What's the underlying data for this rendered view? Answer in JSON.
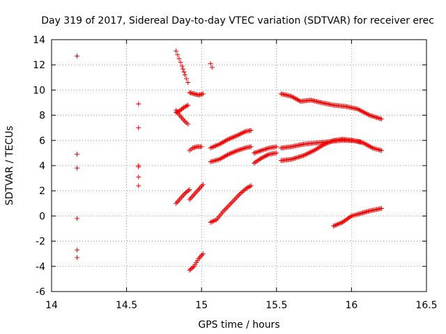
{
  "chart_data": {
    "type": "scatter",
    "title": "Day 319 of 2017, Sidereal Day-to-day VTEC variation (SDTVAR) for receiver erec",
    "xlabel": "GPS time / hours",
    "ylabel": "SDTVAR / TECUs",
    "xlim": [
      14,
      16.5
    ],
    "ylim": [
      -6,
      14
    ],
    "xticks": [
      "14",
      "14.5",
      "15",
      "15.5",
      "16",
      "16.5"
    ],
    "xtick_values": [
      14,
      14.5,
      15,
      15.5,
      16,
      16.5
    ],
    "yticks": [
      "-6",
      "-4",
      "-2",
      "0",
      "2",
      "4",
      "6",
      "8",
      "10",
      "12",
      "14"
    ],
    "ytick_values": [
      -6,
      -4,
      -2,
      0,
      2,
      4,
      6,
      8,
      10,
      12,
      14
    ],
    "grid": true,
    "marker": "plus",
    "marker_color": "#ee0000",
    "series": [
      {
        "segments": [
          {
            "x": [
              14.17,
              14.17,
              14.17,
              14.17,
              14.17,
              14.17
            ],
            "y": [
              12.7,
              4.9,
              3.8,
              -0.2,
              -2.7,
              -3.3
            ]
          },
          {
            "x": [
              14.58,
              14.58,
              14.58,
              14.58,
              14.58,
              14.58
            ],
            "y": [
              8.9,
              7.0,
              4.0,
              3.9,
              3.1,
              2.4
            ]
          },
          {
            "x": [
              14.83,
              14.85,
              14.87,
              14.89,
              14.91
            ],
            "y": [
              13.1,
              12.5,
              11.9,
              11.2,
              10.6
            ]
          },
          {
            "x": [
              14.83,
              14.86,
              14.89,
              14.91
            ],
            "y": [
              8.4,
              7.9,
              7.5,
              7.3
            ]
          },
          {
            "x": [
              14.83,
              14.86,
              14.88,
              14.91
            ],
            "y": [
              8.2,
              8.4,
              8.6,
              8.8
            ]
          },
          {
            "x": [
              14.92,
              14.95,
              14.98,
              15.01
            ],
            "y": [
              9.8,
              9.7,
              9.6,
              9.7
            ]
          },
          {
            "x": [
              14.83,
              14.86,
              14.89,
              14.92
            ],
            "y": [
              1.0,
              1.4,
              1.8,
              2.1
            ]
          },
          {
            "x": [
              14.92,
              14.94,
              14.97,
              15.0
            ],
            "y": [
              5.2,
              5.4,
              5.5,
              5.5
            ]
          },
          {
            "x": [
              14.92,
              14.95,
              14.98,
              15.01
            ],
            "y": [
              1.3,
              1.7,
              2.1,
              2.5
            ]
          },
          {
            "x": [
              14.92,
              14.95,
              14.98,
              15.01
            ],
            "y": [
              -4.3,
              -4.0,
              -3.4,
              -3.0
            ]
          },
          {
            "x": [
              15.06,
              15.07
            ],
            "y": [
              12.1,
              11.8
            ]
          },
          {
            "x": [
              15.06,
              15.12,
              15.18,
              15.24,
              15.29,
              15.33
            ],
            "y": [
              5.4,
              5.7,
              6.1,
              6.4,
              6.7,
              6.8
            ]
          },
          {
            "x": [
              15.06,
              15.12,
              15.18,
              15.24,
              15.29,
              15.33
            ],
            "y": [
              4.3,
              4.5,
              4.9,
              5.2,
              5.4,
              5.5
            ]
          },
          {
            "x": [
              15.06,
              15.1,
              15.14,
              15.18,
              15.22,
              15.26,
              15.3,
              15.33
            ],
            "y": [
              -0.5,
              -0.3,
              0.3,
              0.8,
              1.3,
              1.8,
              2.2,
              2.4
            ]
          },
          {
            "x": [
              15.35,
              15.4,
              15.45,
              15.5
            ],
            "y": [
              5.0,
              5.2,
              5.4,
              5.5
            ]
          },
          {
            "x": [
              15.35,
              15.4,
              15.45,
              15.5
            ],
            "y": [
              4.2,
              4.6,
              4.9,
              5.0
            ]
          },
          {
            "x": [
              15.53,
              15.6,
              15.66,
              15.73,
              15.8,
              15.88,
              15.96,
              16.04,
              16.12,
              16.2
            ],
            "y": [
              9.7,
              9.5,
              9.1,
              9.2,
              9.0,
              8.8,
              8.7,
              8.5,
              8.0,
              7.7
            ]
          },
          {
            "x": [
              15.53,
              15.6,
              15.68,
              15.76,
              15.85,
              15.93,
              16.01,
              16.08,
              16.14,
              16.2
            ],
            "y": [
              5.4,
              5.5,
              5.7,
              5.8,
              5.9,
              6.0,
              6.0,
              5.8,
              5.4,
              5.2
            ]
          },
          {
            "x": [
              15.53,
              15.6,
              15.68,
              15.75,
              15.82,
              15.88,
              15.94,
              16.0,
              16.06
            ],
            "y": [
              4.4,
              4.5,
              4.8,
              5.2,
              5.7,
              6.0,
              6.1,
              6.0,
              5.9
            ]
          },
          {
            "x": [
              15.88,
              15.94,
              16.0,
              16.06,
              16.12,
              16.2
            ],
            "y": [
              -0.8,
              -0.5,
              0.0,
              0.2,
              0.4,
              0.6
            ]
          }
        ]
      }
    ]
  }
}
